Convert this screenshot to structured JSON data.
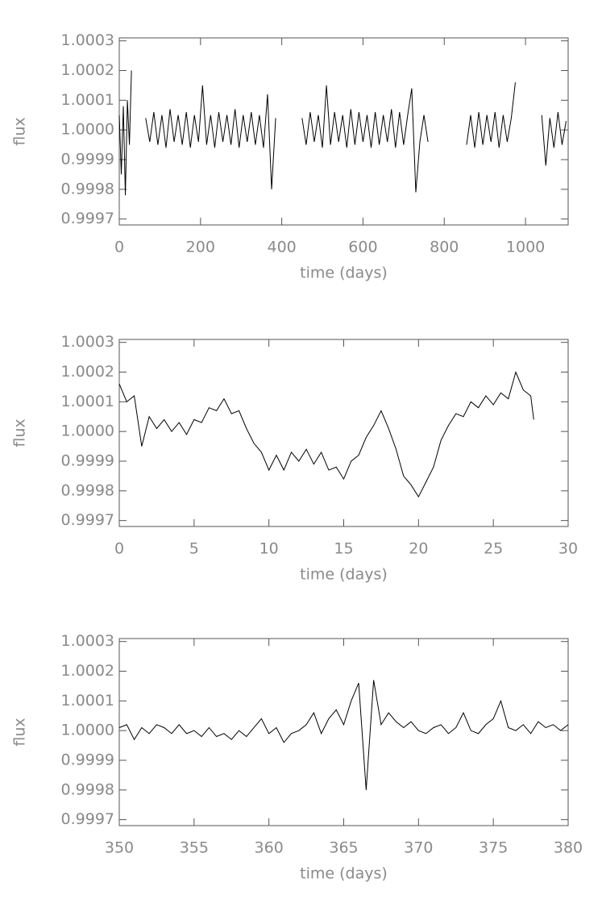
{
  "chart_data": [
    {
      "type": "line",
      "xlabel": "time (days)",
      "ylabel": "flux",
      "color": "#000000",
      "xlim": [
        0,
        1105
      ],
      "xticks": [
        0,
        200,
        400,
        600,
        800,
        1000
      ],
      "ylim": [
        0.99968,
        1.00031
      ],
      "yticks": [
        0.9997,
        0.9998,
        0.9999,
        {
          "value": 1,
          "label": "1.0000"
        },
        1.0001,
        1.0002,
        1.0003
      ],
      "x": [
        0,
        5,
        10,
        15,
        20,
        25,
        30,
        45,
        65,
        75,
        85,
        95,
        105,
        115,
        125,
        135,
        145,
        155,
        165,
        175,
        185,
        195,
        205,
        215,
        225,
        235,
        245,
        255,
        265,
        275,
        285,
        295,
        305,
        315,
        325,
        335,
        345,
        355,
        365,
        375,
        385,
        415,
        450,
        460,
        470,
        480,
        490,
        500,
        510,
        520,
        530,
        540,
        550,
        560,
        570,
        580,
        590,
        600,
        610,
        620,
        630,
        640,
        650,
        660,
        670,
        680,
        690,
        700,
        710,
        720,
        730,
        740,
        750,
        760,
        810,
        855,
        865,
        875,
        885,
        895,
        905,
        915,
        925,
        935,
        945,
        955,
        965,
        975,
        1010,
        1040,
        1050,
        1060,
        1070,
        1080,
        1090,
        1100
      ],
      "values": [
        1.00005,
        0.99985,
        1.00008,
        0.99978,
        1.0001,
        0.99995,
        1.0002,
        null,
        1.00004,
        0.99996,
        1.00006,
        0.99995,
        1.00005,
        0.99994,
        1.00007,
        0.99996,
        1.00005,
        0.99995,
        1.00006,
        0.99994,
        1.00005,
        0.99996,
        1.00015,
        0.99995,
        1.00005,
        0.99994,
        1.00006,
        0.99996,
        1.00005,
        0.99995,
        1.00007,
        0.99994,
        1.00005,
        0.99996,
        1.00006,
        0.99995,
        1.00005,
        0.99994,
        1.00012,
        0.9998,
        1.00004,
        null,
        1.00004,
        0.99995,
        1.00006,
        0.99996,
        1.00005,
        0.99994,
        1.00015,
        0.99995,
        1.00006,
        0.99996,
        1.00005,
        0.99994,
        1.00007,
        0.99995,
        1.00006,
        0.99996,
        1.00005,
        0.99994,
        1.00006,
        0.99995,
        1.00005,
        0.99996,
        1.00007,
        0.99994,
        1.00006,
        0.99995,
        1.00005,
        1.00014,
        0.99979,
        0.99996,
        1.00005,
        0.99996,
        null,
        0.99995,
        1.00005,
        0.99994,
        1.00006,
        0.99995,
        1.00005,
        0.99996,
        1.00006,
        0.99994,
        1.00005,
        0.99996,
        1.00004,
        1.00016,
        null,
        1.00005,
        0.99988,
        1.00004,
        0.99994,
        1.00006,
        0.99995,
        1.00003
      ]
    },
    {
      "type": "line",
      "xlabel": "time (days)",
      "ylabel": "flux",
      "color": "#000000",
      "xlim": [
        0,
        30
      ],
      "xticks": [
        0,
        5,
        10,
        15,
        20,
        25,
        30
      ],
      "ylim": [
        0.99968,
        1.00031
      ],
      "yticks": [
        0.9997,
        0.9998,
        0.9999,
        {
          "value": 1,
          "label": "1.0000"
        },
        1.0001,
        1.0002,
        1.0003
      ],
      "x": [
        0,
        0.5,
        1,
        1.5,
        2,
        2.5,
        3,
        3.5,
        4,
        4.5,
        5,
        5.5,
        6,
        6.5,
        7,
        7.5,
        8,
        8.5,
        9,
        9.5,
        10,
        10.5,
        11,
        11.5,
        12,
        12.5,
        13,
        13.5,
        14,
        14.5,
        15,
        15.5,
        16,
        16.5,
        17,
        17.5,
        18,
        18.5,
        19,
        19.5,
        20,
        20.5,
        21,
        21.5,
        22,
        22.5,
        23,
        23.5,
        24,
        24.5,
        25,
        25.5,
        26,
        26.5,
        27,
        27.5,
        27.7
      ],
      "values": [
        1.00016,
        1.0001,
        1.00012,
        0.99995,
        1.00005,
        1.00001,
        1.00004,
        1.0,
        1.00003,
        0.99999,
        1.00004,
        1.00003,
        1.00008,
        1.00007,
        1.00011,
        1.00006,
        1.00007,
        1.00001,
        0.99996,
        0.99993,
        0.99987,
        0.99992,
        0.99987,
        0.99993,
        0.9999,
        0.99994,
        0.99989,
        0.99993,
        0.99987,
        0.99988,
        0.99984,
        0.9999,
        0.99992,
        0.99998,
        1.00002,
        1.00007,
        1.00001,
        0.99994,
        0.99985,
        0.99982,
        0.99978,
        0.99983,
        0.99988,
        0.99997,
        1.00002,
        1.00006,
        1.00005,
        1.0001,
        1.00008,
        1.00012,
        1.00009,
        1.00013,
        1.00011,
        1.0002,
        1.00014,
        1.00012,
        1.00004
      ]
    },
    {
      "type": "line",
      "xlabel": "time (days)",
      "ylabel": "flux",
      "color": "#000000",
      "xlim": [
        350,
        380
      ],
      "xticks": [
        350,
        355,
        360,
        365,
        370,
        375,
        380
      ],
      "ylim": [
        0.99968,
        1.00031
      ],
      "yticks": [
        0.9997,
        0.9998,
        0.9999,
        {
          "value": 1,
          "label": "1.0000"
        },
        1.0001,
        1.0002,
        1.0003
      ],
      "x": [
        350,
        350.5,
        351,
        351.5,
        352,
        352.5,
        353,
        353.5,
        354,
        354.5,
        355,
        355.5,
        356,
        356.5,
        357,
        357.5,
        358,
        358.5,
        359,
        359.5,
        360,
        360.5,
        361,
        361.5,
        362,
        362.5,
        363,
        363.5,
        364,
        364.5,
        365,
        365.5,
        366,
        366.5,
        367,
        367.5,
        368,
        368.5,
        369,
        369.5,
        370,
        370.5,
        371,
        371.5,
        372,
        372.5,
        373,
        373.5,
        374,
        374.5,
        375,
        375.5,
        376,
        376.5,
        377,
        377.5,
        378,
        378.5,
        379,
        379.5,
        380
      ],
      "values": [
        1.00001,
        1.00002,
        0.99997,
        1.00001,
        0.99999,
        1.00002,
        1.00001,
        0.99999,
        1.00002,
        0.99999,
        1.0,
        0.99998,
        1.00001,
        0.99998,
        0.99999,
        0.99997,
        1.0,
        0.99998,
        1.00001,
        1.00004,
        0.99999,
        1.00001,
        0.99996,
        0.99999,
        1.0,
        1.00002,
        1.00006,
        0.99999,
        1.00004,
        1.00007,
        1.00002,
        1.0001,
        1.00016,
        0.9998,
        1.00017,
        1.00002,
        1.00006,
        1.00003,
        1.00001,
        1.00003,
        1.0,
        0.99999,
        1.00001,
        1.00002,
        0.99999,
        1.00001,
        1.00006,
        1.0,
        0.99999,
        1.00002,
        1.00004,
        1.0001,
        1.00001,
        1.0,
        1.00002,
        0.99999,
        1.00003,
        1.00001,
        1.00002,
        1.0,
        1.00002
      ]
    }
  ]
}
